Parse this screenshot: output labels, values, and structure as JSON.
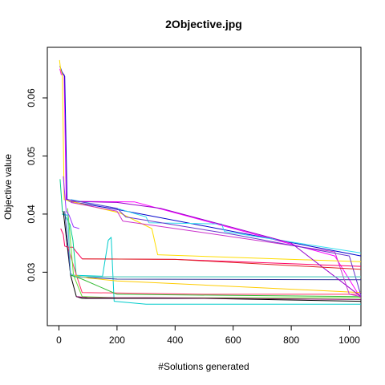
{
  "chart_data": {
    "type": "line",
    "title": "2Objective.jpg",
    "xlabel": "#Solutions generated",
    "ylabel": "Objective value",
    "xlim": [
      -40,
      1040
    ],
    "ylim": [
      0.0208,
      0.0687
    ],
    "xticks": [
      0,
      200,
      400,
      600,
      800,
      1000
    ],
    "yticks": [
      0.03,
      0.04,
      0.05,
      0.06
    ],
    "xtick_labels": [
      "0",
      "200",
      "400",
      "600",
      "800",
      "1000"
    ],
    "ytick_labels": [
      "0.03",
      "0.04",
      "0.05",
      "0.06"
    ],
    "grid": false,
    "legend": "none",
    "series": [
      {
        "color": "#ff00ff",
        "x": [
          3,
          8,
          18,
          25,
          32,
          40,
          260,
          950,
          1040
        ],
        "y": [
          0.065,
          0.064,
          0.064,
          0.0425,
          0.0425,
          0.0422,
          0.0421,
          0.0328,
          0.0255
        ]
      },
      {
        "color": "#0000cc",
        "x": [
          3,
          10,
          20,
          28,
          35,
          200,
          1000,
          1040
        ],
        "y": [
          0.0655,
          0.0645,
          0.0637,
          0.0425,
          0.0422,
          0.0408,
          0.0332,
          0.0328
        ]
      },
      {
        "color": "#ffdd00",
        "x": [
          2,
          6,
          12,
          18,
          40,
          210,
          320,
          340,
          1040
        ],
        "y": [
          0.0665,
          0.0648,
          0.064,
          0.0425,
          0.0422,
          0.0402,
          0.0375,
          0.033,
          0.0318
        ]
      },
      {
        "color": "#ff0066",
        "x": [
          6,
          15,
          20,
          30,
          48,
          60,
          80,
          400,
          1040
        ],
        "y": [
          0.0375,
          0.0365,
          0.0345,
          0.0343,
          0.0343,
          0.0335,
          0.0323,
          0.0322,
          0.031
        ]
      },
      {
        "color": "#00cc88",
        "x": [
          4,
          12,
          20,
          38,
          48,
          60,
          1040
        ],
        "y": [
          0.046,
          0.0405,
          0.0398,
          0.0382,
          0.0355,
          0.0292,
          0.0292
        ]
      },
      {
        "color": "#00cccc",
        "x": [
          10,
          30,
          40,
          150,
          170,
          180,
          190,
          300,
          560,
          570,
          1040
        ],
        "y": [
          0.04,
          0.0398,
          0.0295,
          0.0293,
          0.0355,
          0.036,
          0.025,
          0.0245,
          0.0245,
          0.0245,
          0.0245
        ]
      },
      {
        "color": "#33ddee",
        "x": [
          40,
          200,
          300,
          310,
          560,
          570,
          1040
        ],
        "y": [
          0.0425,
          0.041,
          0.0395,
          0.0385,
          0.0383,
          0.037,
          0.0333
        ]
      },
      {
        "color": "#000000",
        "x": [
          15,
          40,
          60,
          80,
          500,
          1040
        ],
        "y": [
          0.0405,
          0.0295,
          0.0258,
          0.0255,
          0.0255,
          0.025
        ]
      },
      {
        "color": "#333399",
        "x": [
          20,
          40,
          60,
          200,
          1040
        ],
        "y": [
          0.0405,
          0.0295,
          0.0292,
          0.0288,
          0.0287
        ]
      },
      {
        "color": "#ff3366",
        "x": [
          30,
          60,
          80,
          500,
          1040
        ],
        "y": [
          0.0345,
          0.0295,
          0.0265,
          0.0262,
          0.0262
        ]
      },
      {
        "color": "#66dd33",
        "x": [
          30,
          50,
          80,
          200,
          1040
        ],
        "y": [
          0.041,
          0.0295,
          0.0258,
          0.0256,
          0.0256
        ]
      },
      {
        "color": "#33bb33",
        "x": [
          40,
          80,
          200,
          1040
        ],
        "y": [
          0.0295,
          0.0288,
          0.0262,
          0.0258
        ]
      },
      {
        "color": "#ffcc00",
        "x": [
          50,
          100,
          200,
          1040
        ],
        "y": [
          0.0295,
          0.029,
          0.0285,
          0.0265
        ]
      },
      {
        "color": "#cc33cc",
        "x": [
          40,
          200,
          220,
          500,
          950,
          1000,
          1040
        ],
        "y": [
          0.042,
          0.0405,
          0.0388,
          0.0368,
          0.0335,
          0.0262,
          0.0258
        ]
      },
      {
        "color": "#9900cc",
        "x": [
          40,
          200,
          350,
          800,
          1040
        ],
        "y": [
          0.0422,
          0.042,
          0.041,
          0.035,
          0.0258
        ]
      },
      {
        "color": "#6633cc",
        "x": [
          30,
          200,
          230,
          600,
          1000,
          1040
        ],
        "y": [
          0.0425,
          0.041,
          0.0395,
          0.0365,
          0.0328,
          0.026
        ]
      },
      {
        "color": "#dd2222",
        "x": [
          80,
          400,
          1040
        ],
        "y": [
          0.0323,
          0.0322,
          0.0305
        ]
      },
      {
        "color": "#66cccc",
        "x": [
          30,
          40,
          60,
          1040
        ],
        "y": [
          0.0405,
          0.0298,
          0.0292,
          0.0292
        ]
      },
      {
        "color": "#880066",
        "x": [
          60,
          100,
          300,
          1040
        ],
        "y": [
          0.0258,
          0.0256,
          0.0256,
          0.0253
        ]
      },
      {
        "color": "#9933ff",
        "x": [
          15,
          25,
          35,
          50,
          70
        ],
        "y": [
          0.0465,
          0.0405,
          0.0398,
          0.0378,
          0.0375
        ]
      }
    ]
  }
}
